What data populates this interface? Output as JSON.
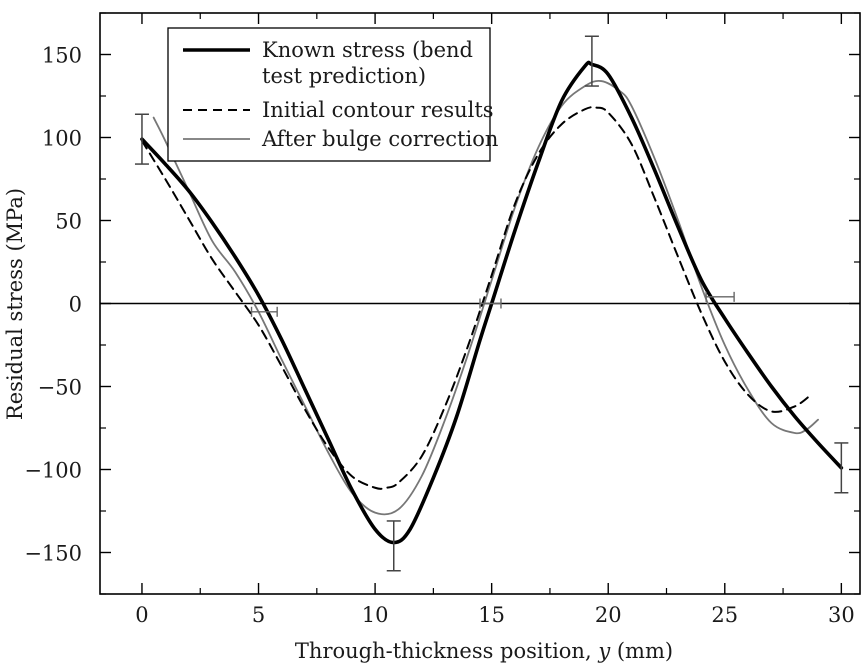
{
  "chart_data": {
    "type": "line",
    "xlabel": "Through-thickness position, y (mm)",
    "xlabel_parts": [
      "Through-thickness position, ",
      "y",
      " (mm)"
    ],
    "ylabel": "Residual stress (MPa)",
    "xlim": [
      -1.8,
      30.8
    ],
    "ylim": [
      -175,
      175
    ],
    "x_ticks": [
      0,
      5,
      10,
      15,
      20,
      25,
      30
    ],
    "x_tick_labels": [
      "0",
      "5",
      "10",
      "15",
      "20",
      "25",
      "30"
    ],
    "y_ticks": [
      150,
      100,
      50,
      0,
      -50,
      -100,
      -150
    ],
    "y_tick_labels": [
      "150",
      "100",
      "50",
      "0",
      "−50",
      "−100",
      "−150"
    ],
    "zero_line": true,
    "legend_position": "top-left",
    "series": [
      {
        "name": "Known stress (bend test prediction)",
        "legend_lines": [
          "Known stress (bend",
          "test prediction)"
        ],
        "style": "solid-thick",
        "color": "#000000",
        "x": [
          0,
          1,
          2,
          3,
          4,
          5,
          6,
          7,
          8,
          9,
          10,
          10.8,
          11.5,
          12.5,
          13.5,
          14.5,
          15,
          16,
          17,
          18,
          19,
          19.3,
          20,
          21,
          22,
          23,
          24,
          25,
          26,
          27,
          28,
          29,
          30
        ],
        "y": [
          99,
          84,
          68,
          49,
          28,
          5,
          -22,
          -52,
          -82,
          -112,
          -136,
          -144,
          -136,
          -105,
          -68,
          -22,
          0,
          44,
          85,
          122,
          143,
          144,
          138,
          112,
          80,
          46,
          14,
          -9,
          -30,
          -50,
          -68,
          -84,
          -99
        ]
      },
      {
        "name": "Initial contour results",
        "legend_lines": [
          "Initial contour results"
        ],
        "style": "dashed",
        "color": "#000000",
        "x": [
          0,
          1,
          2,
          3,
          4,
          5,
          6,
          7,
          8,
          9,
          10,
          10.5,
          11,
          12,
          13,
          14,
          15,
          16,
          17,
          18,
          19,
          19.5,
          20,
          21,
          22,
          23,
          24,
          25,
          26,
          27,
          28,
          28.7
        ],
        "y": [
          98,
          75,
          51,
          27,
          7,
          -13,
          -38,
          -64,
          -87,
          -104,
          -111,
          -111,
          -108,
          -92,
          -62,
          -25,
          17,
          60,
          90,
          108,
          117,
          118,
          115,
          96,
          63,
          28,
          -6,
          -35,
          -55,
          -65,
          -62,
          -55
        ]
      },
      {
        "name": "After bulge correction",
        "legend_lines": [
          "After bulge correction"
        ],
        "style": "solid-thin",
        "color": "#777777",
        "x": [
          0.5,
          1,
          2,
          3,
          4,
          5,
          6,
          7,
          8,
          9,
          10,
          11,
          12,
          13,
          14,
          15,
          16,
          17,
          18,
          19,
          19.7,
          20.5,
          21,
          22,
          23,
          24,
          25,
          26,
          27,
          28,
          28.5,
          29
        ],
        "y": [
          112,
          98,
          68,
          38,
          19,
          -5,
          -34,
          -62,
          -90,
          -114,
          -126,
          -124,
          -104,
          -70,
          -30,
          14,
          58,
          94,
          119,
          131,
          134,
          128,
          119,
          87,
          50,
          10,
          -25,
          -52,
          -72,
          -78,
          -76,
          -70
        ]
      }
    ],
    "error_bars": [
      {
        "x": 0,
        "y": 99,
        "y_low": 84,
        "y_high": 114
      },
      {
        "x": 10.8,
        "y": -146,
        "y_low": -161,
        "y_high": -131
      },
      {
        "x": 19.3,
        "y": 146,
        "y_low": 131,
        "y_high": 161
      },
      {
        "x": 30,
        "y": -99,
        "y_low": -114,
        "y_high": -84
      },
      {
        "x": 5.2,
        "y": -5,
        "x_low": 4.7,
        "x_high": 5.8
      },
      {
        "x": 15,
        "y": 0,
        "x_low": 14.5,
        "x_high": 15.4
      },
      {
        "x": 24.8,
        "y": 4,
        "x_low": 24.2,
        "x_high": 25.4
      }
    ]
  }
}
